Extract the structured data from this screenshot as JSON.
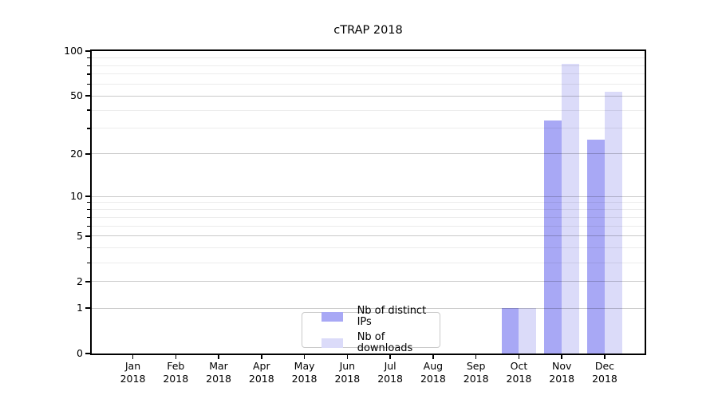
{
  "title": "cTRAP 2018",
  "chart_data": {
    "type": "bar",
    "title": "cTRAP 2018",
    "categories": [
      "Jan",
      "Feb",
      "Mar",
      "Apr",
      "May",
      "Jun",
      "Jul",
      "Aug",
      "Sep",
      "Oct",
      "Nov",
      "Dec"
    ],
    "category_year": "2018",
    "series": [
      {
        "name": "Nb of distinct IPs",
        "color": "#a8a8f5",
        "values": [
          0,
          0,
          0,
          0,
          0,
          0,
          0,
          0,
          0,
          1,
          34,
          25
        ]
      },
      {
        "name": "Nb of downloads",
        "color": "#dbdbf9",
        "values": [
          0,
          0,
          0,
          0,
          0,
          0,
          0,
          0,
          0,
          1,
          82,
          53
        ]
      }
    ],
    "xlabel": "",
    "ylabel": "",
    "y_scale": "log1p",
    "ylim": [
      0,
      100
    ],
    "yticks_major": [
      0,
      1,
      2,
      5,
      10,
      20,
      50,
      100
    ],
    "yticks_minor": [
      3,
      4,
      6,
      7,
      8,
      9,
      30,
      40,
      60,
      70,
      80,
      90
    ],
    "grid": "both",
    "legend_position": "lower-center-inside",
    "colors": {
      "spine": "#000000",
      "grid_major": "#c9c9c9",
      "grid_minor": "#ececec",
      "background": "#ffffff"
    }
  }
}
